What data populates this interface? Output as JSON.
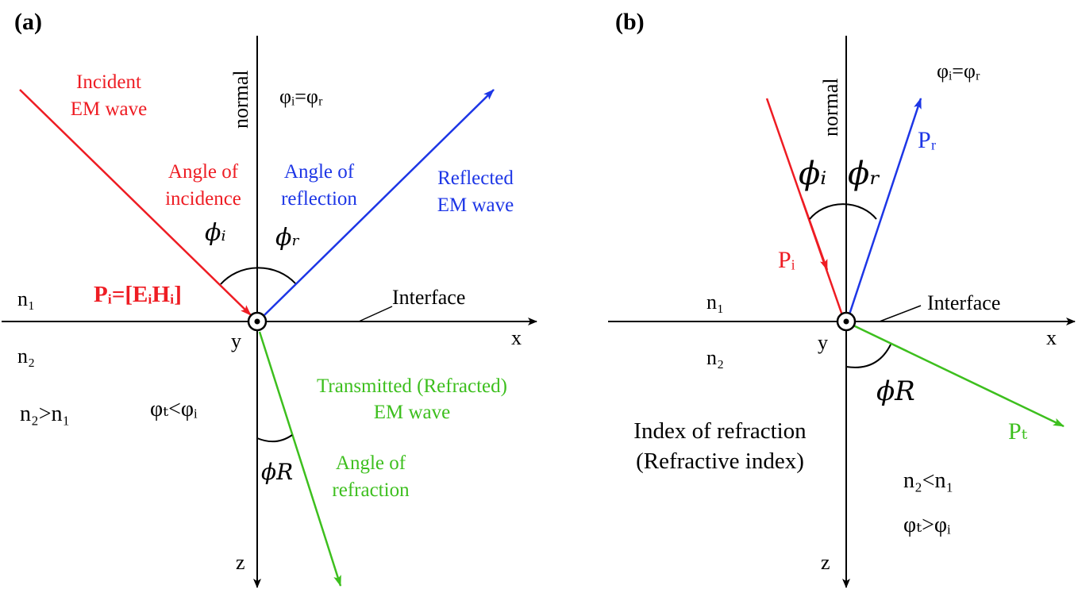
{
  "colors": {
    "incident": "#ee1c23",
    "reflected": "#1d36e6",
    "transmitted": "#3dbf1e",
    "axis": "#000000"
  },
  "panel_a": {
    "label": "(a)",
    "normal": "normal",
    "incident_line1": "Incident",
    "incident_line2": "EM wave",
    "phi_eq": "φᵢ=φᵣ",
    "angle_incidence_1": "Angle of",
    "angle_incidence_2": "incidence",
    "angle_reflection_1": "Angle of",
    "angle_reflection_2": "reflection",
    "reflected_1": "Reflected",
    "reflected_2": "EM wave",
    "phi_i": "ϕᵢ",
    "phi_r": "ϕᵣ",
    "n1": "n₁",
    "poynting": "Pᵢ=[EᵢHᵢ]",
    "interface": "Interface",
    "y": "y",
    "x": "x",
    "n2": "n₂",
    "transmitted_1": "Transmitted (Refracted)",
    "transmitted_2": "EM wave",
    "n_rel": "n₂>n₁",
    "phi_rel": "φₜ<φᵢ",
    "phi_R": "ϕR",
    "angle_refraction_1": "Angle of",
    "angle_refraction_2": "refraction",
    "z": "z"
  },
  "panel_b": {
    "label": "(b)",
    "normal": "normal",
    "phi_eq": "φᵢ=φᵣ",
    "Pr": "Pᵣ",
    "phi_i": "ϕᵢ",
    "phi_r": "ϕᵣ",
    "Pi": "Pᵢ",
    "n1": "n₁",
    "interface": "Interface",
    "y": "y",
    "x": "x",
    "n2": "n₂",
    "phi_R": "ϕR",
    "Pt": "Pₜ",
    "index_1": "Index of refraction",
    "index_2": "(Refractive index)",
    "n_rel": "n₂<n₁",
    "phi_rel": "φₜ>φᵢ",
    "z": "z"
  }
}
